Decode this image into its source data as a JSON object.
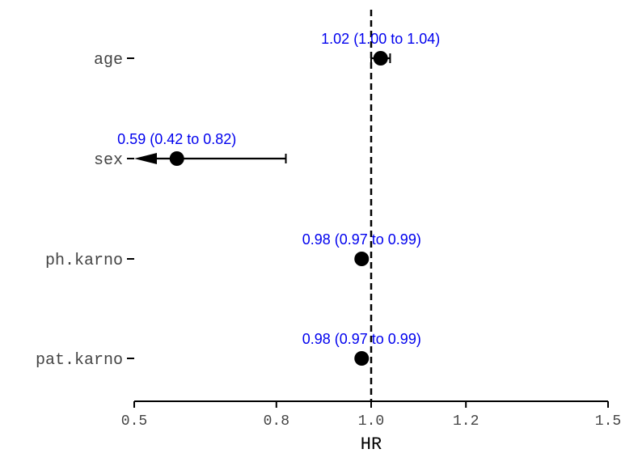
{
  "chart_data": {
    "type": "forest",
    "xlabel": "HR",
    "xlim": [
      0.5,
      1.5
    ],
    "x_ticks": [
      0.5,
      0.8,
      1.0,
      1.2,
      1.5
    ],
    "x_tick_labels": [
      "0.5",
      "0.8",
      "1.0",
      "1.2",
      "1.5"
    ],
    "reference_line": 1.0,
    "annotation_color": "#0000ee",
    "rows": [
      {
        "label": "age",
        "hr": 1.02,
        "lower": 1.0,
        "upper": 1.04,
        "text": "1.02 (1.00 to 1.04)",
        "lower_clipped": false
      },
      {
        "label": "sex",
        "hr": 0.59,
        "lower": 0.42,
        "upper": 0.82,
        "text": "0.59 (0.42 to 0.82)",
        "lower_clipped": true
      },
      {
        "label": "ph.karno",
        "hr": 0.98,
        "lower": 0.97,
        "upper": 0.99,
        "text": "0.98 (0.97 to 0.99)",
        "lower_clipped": false
      },
      {
        "label": "pat.karno",
        "hr": 0.98,
        "lower": 0.97,
        "upper": 0.99,
        "text": "0.98 (0.97 to 0.99)",
        "lower_clipped": false
      }
    ]
  }
}
